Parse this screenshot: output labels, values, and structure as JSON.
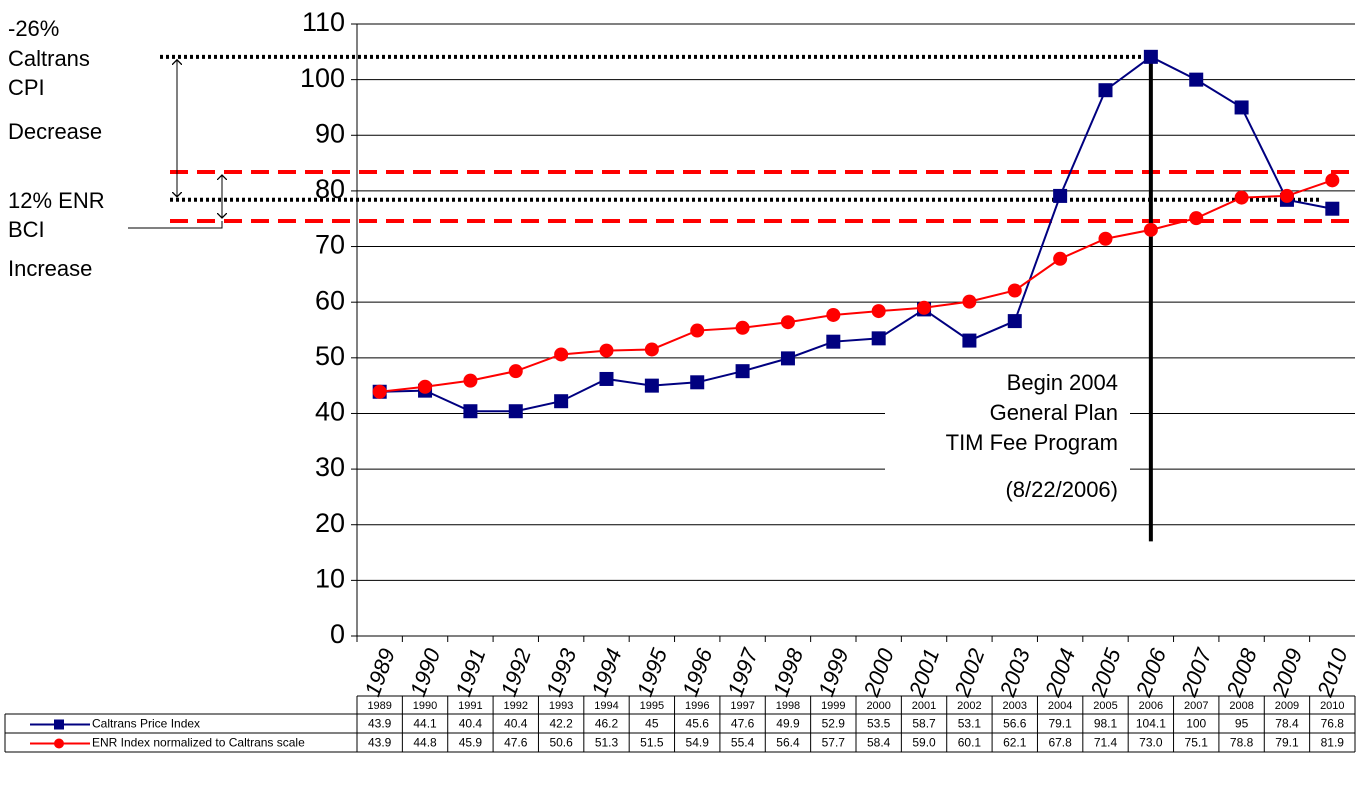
{
  "chart_data": {
    "type": "line",
    "categories": [
      "1989",
      "1990",
      "1991",
      "1992",
      "1993",
      "1994",
      "1995",
      "1996",
      "1997",
      "1998",
      "1999",
      "2000",
      "2001",
      "2002",
      "2003",
      "2004",
      "2005",
      "2006",
      "2007",
      "2008",
      "2009",
      "2010"
    ],
    "series": [
      {
        "name": "Caltrans Price Index",
        "color": "#000080",
        "marker": "square",
        "values": [
          43.9,
          44.1,
          40.4,
          40.4,
          42.2,
          46.2,
          45,
          45.6,
          47.6,
          49.9,
          52.9,
          53.5,
          58.7,
          53.1,
          56.6,
          79.1,
          98.1,
          104.1,
          100,
          95,
          78.4,
          76.8
        ]
      },
      {
        "name": "ENR Index normalized to Caltrans scale",
        "color": "#ff0000",
        "marker": "circle",
        "values": [
          43.9,
          44.8,
          45.9,
          47.6,
          50.6,
          51.3,
          51.5,
          54.9,
          55.4,
          56.4,
          57.7,
          58.4,
          59,
          60.1,
          62.1,
          67.8,
          71.4,
          73,
          75.1,
          78.8,
          79.1,
          81.9
        ],
        "value_labels": [
          "43.9",
          "44.8",
          "45.9",
          "47.6",
          "50.6",
          "51.3",
          "51.5",
          "54.9",
          "55.4",
          "56.4",
          "57.7",
          "58.4",
          "59.0",
          "60.1",
          "62.1",
          "67.8",
          "71.4",
          "73.0",
          "75.1",
          "78.8",
          "79.1",
          "81.9"
        ]
      }
    ],
    "ylim": [
      0,
      110
    ],
    "yticks": [
      0,
      10,
      20,
      30,
      40,
      50,
      60,
      70,
      80,
      90,
      100,
      110
    ],
    "grid": true,
    "reference_lines": [
      {
        "value": 104.1,
        "color": "#000000",
        "style": "dotted"
      },
      {
        "value": 78.4,
        "color": "#000000",
        "style": "dotted"
      },
      {
        "value": 83.4,
        "color": "#ff0000",
        "style": "dashed"
      },
      {
        "value": 74.6,
        "color": "#ff0000",
        "style": "dashed"
      }
    ],
    "vline": {
      "category": "2006",
      "from": 17,
      "to": 104.1
    },
    "annotations": [
      {
        "lines": [
          "-26%",
          "Caltrans",
          "CPI",
          "Decrease"
        ]
      },
      {
        "lines": [
          "12% ENR",
          "BCI",
          "Increase"
        ]
      },
      {
        "lines": [
          "Begin 2004",
          "General Plan",
          "TIM Fee Program",
          "(8/22/2006)"
        ]
      }
    ]
  }
}
